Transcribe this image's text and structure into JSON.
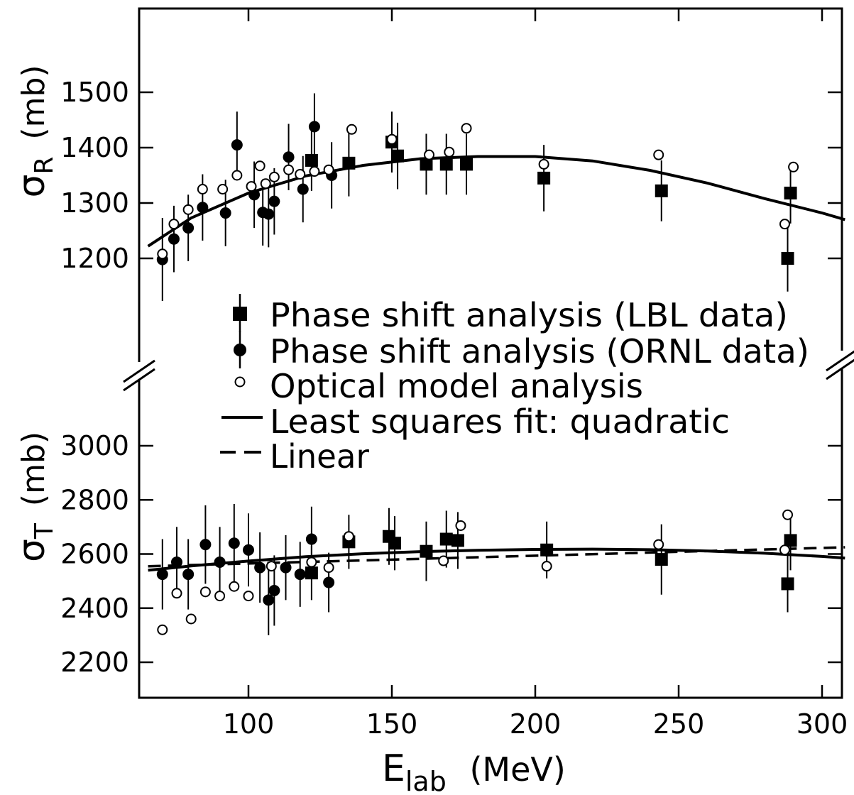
{
  "chart_data": {
    "type": "scatter",
    "x_axis": {
      "title_main": "E",
      "title_sub": "lab",
      "title_unit": "(MeV)",
      "xlim": [
        60,
        310
      ],
      "ticks": [
        100,
        150,
        200,
        250,
        300
      ],
      "tick_labels": [
        "100",
        "150",
        "200",
        "250",
        "300"
      ]
    },
    "panels": [
      {
        "name": "sigma_R",
        "ylabel_symbol": "σ",
        "ylabel_sub": "R",
        "ylabel_unit": "(mb)",
        "ylim": [
          1000,
          1600
        ],
        "ticks": [
          1200,
          1300,
          1400,
          1500
        ],
        "tick_labels": [
          "1200",
          "1300",
          "1400",
          "1500"
        ],
        "series": [
          {
            "name": "Phase shift analysis (LBL data)",
            "marker": "square",
            "points": [
              {
                "x": 122,
                "y": 1377,
                "err": 55
              },
              {
                "x": 135,
                "y": 1372,
                "err": 60
              },
              {
                "x": 150,
                "y": 1410,
                "err": 55
              },
              {
                "x": 152,
                "y": 1385,
                "err": 60
              },
              {
                "x": 162,
                "y": 1370,
                "err": 55
              },
              {
                "x": 169,
                "y": 1370,
                "err": 55
              },
              {
                "x": 176,
                "y": 1370,
                "err": 55
              },
              {
                "x": 203,
                "y": 1345,
                "err": 60
              },
              {
                "x": 244,
                "y": 1322,
                "err": 55
              },
              {
                "x": 289,
                "y": 1318,
                "err": 55
              },
              {
                "x": 288,
                "y": 1200,
                "err": 60
              }
            ]
          },
          {
            "name": "Phase shift analysis (ORNL data)",
            "marker": "filled-circle",
            "points": [
              {
                "x": 70,
                "y": 1198,
                "err": 75
              },
              {
                "x": 74,
                "y": 1235,
                "err": 60
              },
              {
                "x": 79,
                "y": 1255,
                "err": 60
              },
              {
                "x": 84,
                "y": 1292,
                "err": 60
              },
              {
                "x": 92,
                "y": 1282,
                "err": 60
              },
              {
                "x": 96,
                "y": 1405,
                "err": 60
              },
              {
                "x": 102,
                "y": 1315,
                "err": 60
              },
              {
                "x": 105,
                "y": 1283,
                "err": 60
              },
              {
                "x": 107,
                "y": 1280,
                "err": 60
              },
              {
                "x": 109,
                "y": 1303,
                "err": 60
              },
              {
                "x": 114,
                "y": 1383,
                "err": 60
              },
              {
                "x": 119,
                "y": 1325,
                "err": 60
              },
              {
                "x": 123,
                "y": 1438,
                "err": 60
              },
              {
                "x": 129,
                "y": 1350,
                "err": 60
              }
            ]
          },
          {
            "name": "Optical model analysis",
            "marker": "open-circle",
            "points": [
              {
                "x": 70,
                "y": 1208
              },
              {
                "x": 74,
                "y": 1262
              },
              {
                "x": 79,
                "y": 1288
              },
              {
                "x": 84,
                "y": 1325
              },
              {
                "x": 91,
                "y": 1325
              },
              {
                "x": 96,
                "y": 1350
              },
              {
                "x": 101,
                "y": 1330
              },
              {
                "x": 104,
                "y": 1367
              },
              {
                "x": 106,
                "y": 1335
              },
              {
                "x": 109,
                "y": 1347
              },
              {
                "x": 114,
                "y": 1360
              },
              {
                "x": 118,
                "y": 1352
              },
              {
                "x": 123,
                "y": 1357
              },
              {
                "x": 128,
                "y": 1360
              },
              {
                "x": 136,
                "y": 1433
              },
              {
                "x": 150,
                "y": 1415
              },
              {
                "x": 163,
                "y": 1387
              },
              {
                "x": 170,
                "y": 1392
              },
              {
                "x": 176,
                "y": 1435
              },
              {
                "x": 203,
                "y": 1370
              },
              {
                "x": 243,
                "y": 1387
              },
              {
                "x": 287,
                "y": 1262
              },
              {
                "x": 290,
                "y": 1365
              }
            ]
          },
          {
            "name": "Least squares fit: quadratic",
            "line": "solid",
            "x": [
              65,
              80,
              100,
              120,
              140,
              160,
              180,
              200,
              220,
              240,
              260,
              280,
              300,
              308
            ],
            "y": [
              1222,
              1273,
              1318,
              1349,
              1368,
              1380,
              1384,
              1384,
              1376,
              1359,
              1336,
              1308,
              1282,
              1270
            ]
          }
        ]
      },
      {
        "name": "sigma_T",
        "ylabel_symbol": "σ",
        "ylabel_sub": "T",
        "ylabel_unit": "(mb)",
        "ylim": [
          2080,
          3000
        ],
        "ticks": [
          2200,
          2400,
          2600,
          2800,
          3000
        ],
        "tick_labels": [
          "2200",
          "2400",
          "2600",
          "2800",
          "3000"
        ],
        "series": [
          {
            "name": "Phase shift analysis (LBL data)",
            "marker": "square",
            "points": [
              {
                "x": 122,
                "y": 2530,
                "err": 100
              },
              {
                "x": 135,
                "y": 2645,
                "err": 100
              },
              {
                "x": 149,
                "y": 2665,
                "err": 105
              },
              {
                "x": 151,
                "y": 2640,
                "err": 100
              },
              {
                "x": 162,
                "y": 2610,
                "err": 110
              },
              {
                "x": 169,
                "y": 2655,
                "err": 105
              },
              {
                "x": 173,
                "y": 2650,
                "err": 105
              },
              {
                "x": 204,
                "y": 2615,
                "err": 105
              },
              {
                "x": 244,
                "y": 2580,
                "err": 130
              },
              {
                "x": 289,
                "y": 2650,
                "err": 110
              },
              {
                "x": 288,
                "y": 2490,
                "err": 105
              }
            ]
          },
          {
            "name": "Phase shift analysis (ORNL data)",
            "marker": "filled-circle",
            "points": [
              {
                "x": 70,
                "y": 2525,
                "err": 130
              },
              {
                "x": 75,
                "y": 2570,
                "err": 130
              },
              {
                "x": 79,
                "y": 2525,
                "err": 130
              },
              {
                "x": 85,
                "y": 2635,
                "err": 145
              },
              {
                "x": 90,
                "y": 2570,
                "err": 130
              },
              {
                "x": 95,
                "y": 2640,
                "err": 145
              },
              {
                "x": 100,
                "y": 2615,
                "err": 135
              },
              {
                "x": 104,
                "y": 2550,
                "err": 130
              },
              {
                "x": 107,
                "y": 2430,
                "err": 130
              },
              {
                "x": 109,
                "y": 2465,
                "err": 130
              },
              {
                "x": 113,
                "y": 2550,
                "err": 120
              },
              {
                "x": 118,
                "y": 2525,
                "err": 120
              },
              {
                "x": 122,
                "y": 2655,
                "err": 120
              },
              {
                "x": 128,
                "y": 2495,
                "err": 110
              }
            ]
          },
          {
            "name": "Optical model analysis",
            "marker": "open-circle",
            "points": [
              {
                "x": 70,
                "y": 2320
              },
              {
                "x": 75,
                "y": 2455
              },
              {
                "x": 80,
                "y": 2360
              },
              {
                "x": 85,
                "y": 2460
              },
              {
                "x": 90,
                "y": 2445
              },
              {
                "x": 95,
                "y": 2480
              },
              {
                "x": 100,
                "y": 2445
              },
              {
                "x": 108,
                "y": 2555
              },
              {
                "x": 122,
                "y": 2570
              },
              {
                "x": 128,
                "y": 2550
              },
              {
                "x": 135,
                "y": 2665
              },
              {
                "x": 168,
                "y": 2575
              },
              {
                "x": 174,
                "y": 2705
              },
              {
                "x": 204,
                "y": 2555
              },
              {
                "x": 243,
                "y": 2635
              },
              {
                "x": 287,
                "y": 2615
              },
              {
                "x": 288,
                "y": 2745
              }
            ]
          },
          {
            "name": "Least squares fit: quadratic",
            "line": "solid",
            "x": [
              65,
              80,
              100,
              120,
              140,
              160,
              180,
              200,
              220,
              240,
              260,
              280,
              300,
              308
            ],
            "y": [
              2540,
              2556,
              2574,
              2590,
              2601,
              2609,
              2614,
              2617,
              2618,
              2616,
              2611,
              2603,
              2591,
              2585
            ]
          },
          {
            "name": "Linear",
            "line": "dashed",
            "x": [
              65,
              308
            ],
            "y": [
              2555,
              2625
            ]
          }
        ]
      }
    ],
    "legend": {
      "placement": "center",
      "entries": [
        {
          "marker": "square",
          "label": "Phase shift analysis (LBL data)"
        },
        {
          "marker": "filled-circle",
          "label": "Phase shift analysis (ORNL data)"
        },
        {
          "marker": "open-circle",
          "label": "Optical model analysis"
        },
        {
          "marker": "solid-line",
          "label": "Least squares fit: quadratic"
        },
        {
          "marker": "dashed-line",
          "label": "Linear"
        }
      ]
    },
    "axis_break": true,
    "grid": false,
    "colors": {
      "ink": "#000000",
      "background": "#ffffff"
    }
  }
}
